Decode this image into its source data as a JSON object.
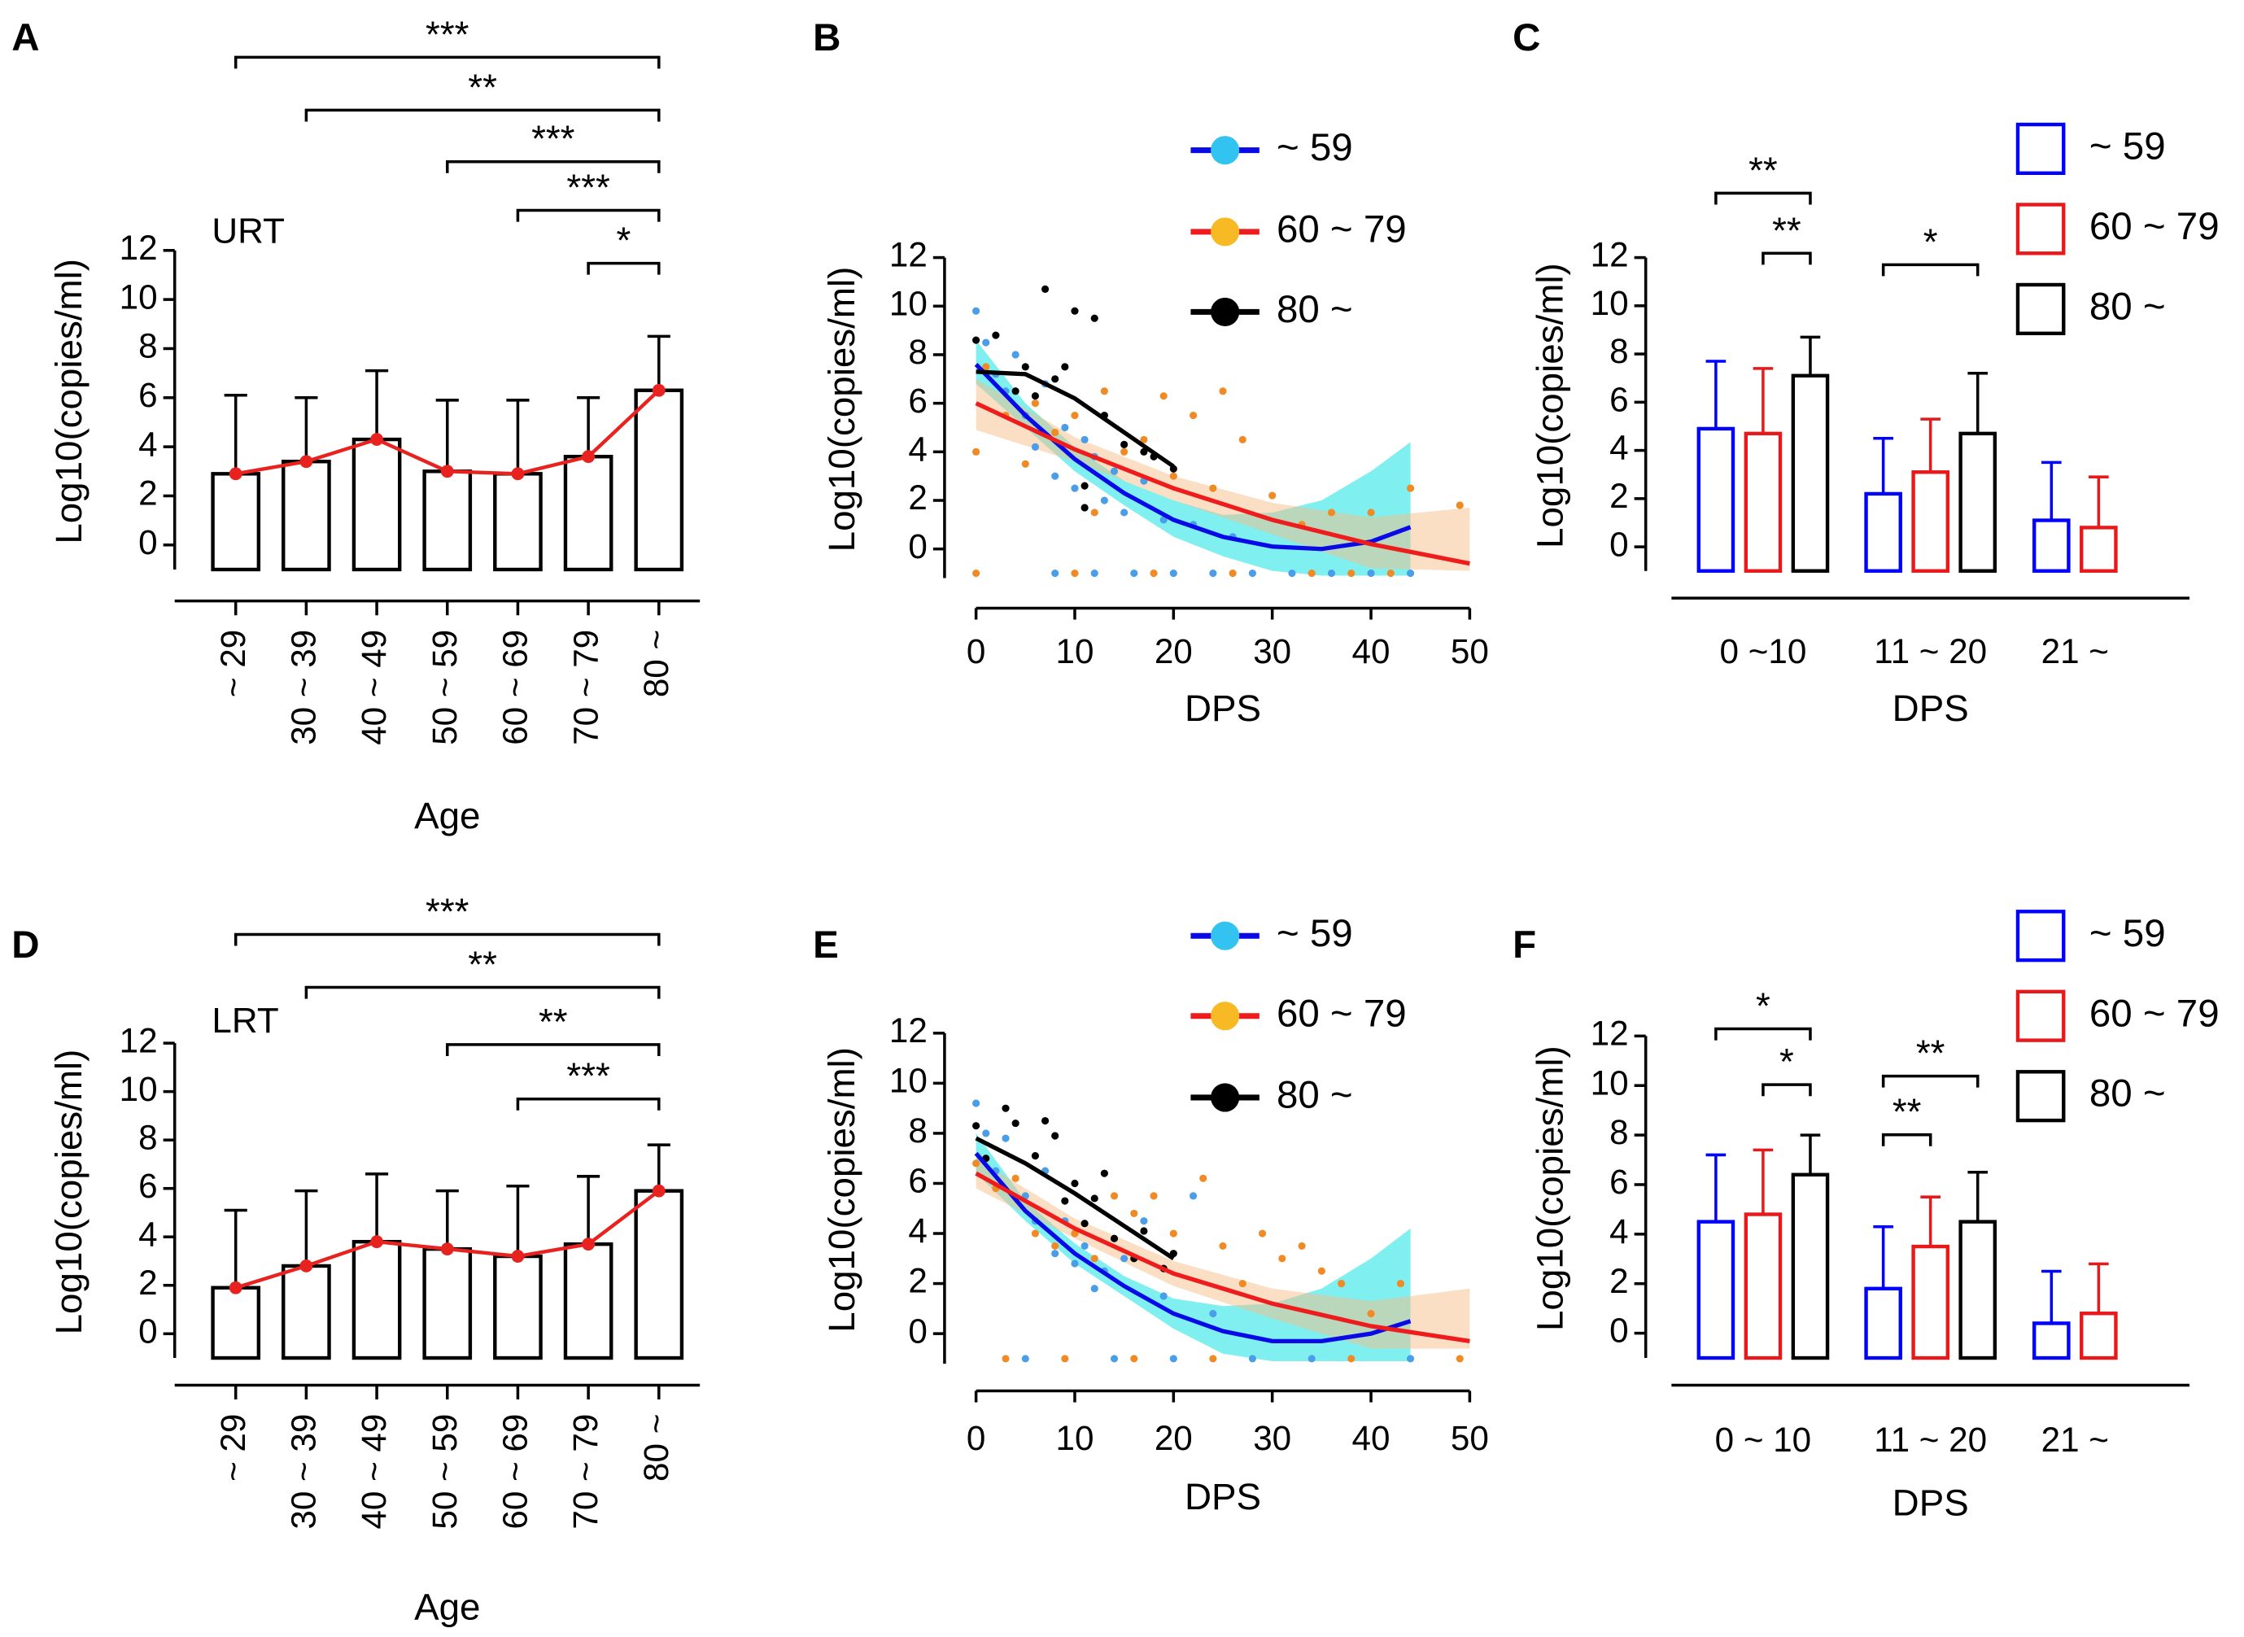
{
  "chart_data": [
    {
      "type": "bar",
      "panel": "A",
      "annotation": "URT",
      "x_label": "Age",
      "y_label": "Log10(copies/ml)",
      "categories": [
        "~ 29",
        "30 ~ 39",
        "40 ~ 49",
        "50 ~ 59",
        "60 ~ 69",
        "70 ~ 79",
        "80 ~"
      ],
      "values": [
        2.9,
        3.4,
        4.3,
        3.0,
        2.9,
        3.6,
        6.3
      ],
      "errors": [
        3.2,
        2.6,
        2.8,
        2.9,
        3.0,
        2.4,
        2.2
      ],
      "color": "#000000",
      "line_color": "#e8231f",
      "ylim": [
        -1,
        12
      ],
      "yticks": [
        0,
        2,
        4,
        6,
        8,
        10,
        12
      ],
      "brackets": [
        {
          "from": 0,
          "to": 6,
          "label": "***"
        },
        {
          "from": 1,
          "to": 6,
          "label": "**"
        },
        {
          "from": 3,
          "to": 6,
          "label": "***"
        },
        {
          "from": 4,
          "to": 6,
          "label": "***"
        },
        {
          "from": 5,
          "to": 6,
          "label": "*"
        }
      ]
    },
    {
      "type": "scatter",
      "panel": "B",
      "x_label": "DPS",
      "y_label": "Log10(copies/ml)",
      "xlim": [
        0,
        50
      ],
      "xticks": [
        0,
        10,
        20,
        30,
        40,
        50
      ],
      "ylim": [
        -1.2,
        12
      ],
      "yticks": [
        0,
        2,
        4,
        6,
        8,
        10,
        12
      ],
      "series": [
        {
          "name": "~ 59",
          "line_color": "#0a0ae6",
          "point_color": "#4a9ee8",
          "legend_dot_color": "#33c3f0",
          "band_color": "#00e0e0",
          "x": [
            0,
            1,
            2,
            3,
            4,
            5,
            6,
            7,
            8,
            9,
            10,
            11,
            12,
            13,
            14,
            15,
            17,
            19,
            22,
            26,
            8,
            12,
            16,
            20,
            24,
            28,
            32,
            36,
            40,
            44
          ],
          "y": [
            9.8,
            8.5,
            7.2,
            6.5,
            8.0,
            5.5,
            4.2,
            6.8,
            3.0,
            5.0,
            2.5,
            4.5,
            3.8,
            2.0,
            3.2,
            1.5,
            2.8,
            1.2,
            1.0,
            0.5,
            -1,
            -1,
            -1,
            -1,
            -1,
            -1,
            -1,
            -1,
            -1,
            -1
          ],
          "fit_x": [
            0,
            5,
            10,
            15,
            20,
            25,
            30,
            35,
            40,
            44
          ],
          "fit_y": [
            7.6,
            5.5,
            3.7,
            2.3,
            1.2,
            0.5,
            0.1,
            0.0,
            0.3,
            0.9
          ],
          "fit_upper": [
            8.6,
            6.0,
            4.2,
            2.8,
            2.0,
            1.4,
            1.5,
            2.0,
            3.2,
            4.4
          ],
          "fit_lower": [
            6.8,
            5.0,
            3.2,
            1.8,
            0.5,
            -0.3,
            -0.9,
            -1.1,
            -1.1,
            -1.1
          ]
        },
        {
          "name": "60 ~ 79",
          "line_color": "#ee1c1c",
          "point_color": "#f08a24",
          "legend_dot_color": "#f7b924",
          "band_color": "#f5c08a",
          "x": [
            0,
            1,
            3,
            5,
            6,
            8,
            10,
            12,
            13,
            15,
            17,
            19,
            20,
            22,
            24,
            25,
            27,
            30,
            33,
            36,
            40,
            44,
            49,
            0,
            10,
            18,
            26,
            34,
            38,
            42
          ],
          "y": [
            4.0,
            7.5,
            5.5,
            3.5,
            6.0,
            4.8,
            5.5,
            1.5,
            6.5,
            4.0,
            4.5,
            6.3,
            3.0,
            5.5,
            2.5,
            6.5,
            4.5,
            2.2,
            1.0,
            1.5,
            1.5,
            2.5,
            1.8,
            -1,
            -1,
            -1,
            -1,
            -1,
            -1,
            -1
          ],
          "fit_x": [
            0,
            10,
            20,
            30,
            40,
            50
          ],
          "fit_y": [
            6.0,
            4.1,
            2.5,
            1.2,
            0.2,
            -0.6
          ],
          "fit_upper": [
            7.0,
            4.6,
            3.0,
            1.9,
            1.3,
            1.7
          ],
          "fit_lower": [
            4.9,
            3.6,
            2.0,
            0.6,
            -0.8,
            -0.9
          ]
        },
        {
          "name": "80 ~",
          "line_color": "#000000",
          "point_color": "#000000",
          "legend_dot_color": "#000000",
          "x": [
            0,
            2,
            4,
            5,
            6,
            7,
            8,
            9,
            10,
            11,
            11,
            12,
            13,
            15,
            17,
            18,
            20
          ],
          "y": [
            8.6,
            8.8,
            6.5,
            7.5,
            6.3,
            10.7,
            7.0,
            7.5,
            9.8,
            2.6,
            1.7,
            9.5,
            5.5,
            4.3,
            4.0,
            3.8,
            3.3
          ],
          "fit_x": [
            0,
            5,
            10,
            15,
            20
          ],
          "fit_y": [
            7.3,
            7.2,
            6.2,
            4.8,
            3.4
          ]
        }
      ]
    },
    {
      "type": "grouped_bar",
      "panel": "C",
      "x_label": "DPS",
      "y_label": "Log10(copies/ml)",
      "categories": [
        "0 ~10",
        "11 ~ 20",
        "21 ~"
      ],
      "ylim": [
        -1,
        12
      ],
      "yticks": [
        0,
        2,
        4,
        6,
        8,
        10,
        12
      ],
      "series": [
        {
          "name": "~ 59",
          "color": "#0000ff",
          "values": [
            4.9,
            2.2,
            1.1
          ],
          "errors": [
            2.8,
            2.3,
            2.4
          ]
        },
        {
          "name": "60 ~ 79",
          "color": "#e8191b",
          "values": [
            4.7,
            3.1,
            0.8
          ],
          "errors": [
            2.7,
            2.2,
            2.1
          ]
        },
        {
          "name": "80 ~",
          "color": "#000000",
          "values": [
            7.1,
            4.7,
            null
          ],
          "errors": [
            1.6,
            2.5,
            null
          ]
        }
      ],
      "brackets": [
        {
          "group": 0,
          "from": 0,
          "to": 2,
          "label": "**"
        },
        {
          "group": 0,
          "from": 1,
          "to": 2,
          "label": "**"
        },
        {
          "group": 1,
          "from": 0,
          "to": 2,
          "label": "*"
        }
      ]
    },
    {
      "type": "bar",
      "panel": "D",
      "annotation": "LRT",
      "x_label": "Age",
      "y_label": "Log10(copies/ml)",
      "categories": [
        "~ 29",
        "30 ~ 39",
        "40 ~ 49",
        "50 ~ 59",
        "60 ~ 69",
        "70 ~ 79",
        "80 ~"
      ],
      "values": [
        1.9,
        2.8,
        3.8,
        3.5,
        3.2,
        3.7,
        5.9
      ],
      "errors": [
        3.2,
        3.1,
        2.8,
        2.4,
        2.9,
        2.8,
        1.9
      ],
      "color": "#000000",
      "line_color": "#e8231f",
      "ylim": [
        -1,
        12
      ],
      "yticks": [
        0,
        2,
        4,
        6,
        8,
        10,
        12
      ],
      "brackets": [
        {
          "from": 0,
          "to": 6,
          "label": "***"
        },
        {
          "from": 1,
          "to": 6,
          "label": "**"
        },
        {
          "from": 3,
          "to": 6,
          "label": "**"
        },
        {
          "from": 4,
          "to": 6,
          "label": "***"
        }
      ]
    },
    {
      "type": "scatter",
      "panel": "E",
      "x_label": "DPS",
      "y_label": "Log10(copies/ml)",
      "xlim": [
        0,
        50
      ],
      "xticks": [
        0,
        10,
        20,
        30,
        40,
        50
      ],
      "ylim": [
        -1.2,
        12
      ],
      "yticks": [
        0,
        2,
        4,
        6,
        8,
        10,
        12
      ],
      "series": [
        {
          "name": "~ 59",
          "line_color": "#0a0ae6",
          "point_color": "#4a9ee8",
          "legend_dot_color": "#33c3f0",
          "band_color": "#00e0e0",
          "x": [
            0,
            1,
            2,
            3,
            5,
            6,
            7,
            8,
            9,
            10,
            11,
            12,
            13,
            15,
            17,
            19,
            22,
            24,
            5,
            14,
            20,
            28,
            34,
            44
          ],
          "y": [
            9.2,
            8.0,
            6.5,
            7.8,
            5.5,
            4.5,
            6.5,
            3.2,
            4.5,
            2.8,
            3.5,
            1.8,
            2.5,
            3.0,
            4.5,
            1.5,
            5.5,
            0.8,
            -1,
            -1,
            -1,
            -1,
            -1,
            -1
          ],
          "fit_x": [
            0,
            5,
            10,
            15,
            20,
            25,
            30,
            35,
            40,
            44
          ],
          "fit_y": [
            7.2,
            4.9,
            3.2,
            1.9,
            0.8,
            0.1,
            -0.3,
            -0.3,
            0.0,
            0.5
          ],
          "fit_upper": [
            8.0,
            5.3,
            3.6,
            2.3,
            1.4,
            1.1,
            1.2,
            1.8,
            3.0,
            4.2
          ],
          "fit_lower": [
            6.4,
            4.5,
            2.8,
            1.5,
            0.2,
            -0.8,
            -1.1,
            -1.1,
            -1.1,
            -1.1
          ]
        },
        {
          "name": "60 ~ 79",
          "line_color": "#ee1c1c",
          "point_color": "#f08a24",
          "legend_dot_color": "#f7b924",
          "band_color": "#f5c08a",
          "x": [
            0,
            2,
            4,
            6,
            8,
            10,
            12,
            14,
            16,
            18,
            20,
            23,
            25,
            27,
            29,
            31,
            33,
            35,
            37,
            40,
            43,
            3,
            9,
            16,
            24,
            38,
            49
          ],
          "y": [
            6.8,
            5.8,
            6.2,
            4.0,
            3.5,
            4.0,
            3.0,
            5.5,
            4.8,
            5.5,
            4.0,
            6.2,
            3.5,
            2.0,
            4.0,
            3.0,
            3.5,
            2.5,
            2.0,
            0.8,
            2.0,
            -1,
            -1,
            -1,
            -1,
            -1,
            -1
          ],
          "fit_x": [
            0,
            10,
            20,
            30,
            40,
            50
          ],
          "fit_y": [
            6.4,
            4.2,
            2.4,
            1.2,
            0.3,
            -0.3
          ],
          "fit_upper": [
            7.0,
            4.6,
            2.9,
            1.8,
            1.3,
            1.8
          ],
          "fit_lower": [
            5.8,
            3.8,
            1.9,
            0.6,
            -0.6,
            -0.6
          ]
        },
        {
          "name": "80 ~",
          "line_color": "#000000",
          "point_color": "#000000",
          "legend_dot_color": "#000000",
          "x": [
            0,
            1,
            3,
            4,
            6,
            7,
            8,
            9,
            10,
            11,
            12,
            13,
            14,
            16,
            17,
            19,
            20
          ],
          "y": [
            8.3,
            7.0,
            9.0,
            8.4,
            7.1,
            8.5,
            7.9,
            5.3,
            6.0,
            4.4,
            5.4,
            6.4,
            3.8,
            3.0,
            4.1,
            2.6,
            3.2
          ],
          "fit_x": [
            0,
            5,
            10,
            15,
            20
          ],
          "fit_y": [
            7.8,
            6.8,
            5.6,
            4.3,
            3.0
          ]
        }
      ]
    },
    {
      "type": "grouped_bar",
      "panel": "F",
      "x_label": "DPS",
      "y_label": "Log10(copies/ml)",
      "categories": [
        "0 ~ 10",
        "11 ~ 20",
        "21 ~"
      ],
      "ylim": [
        -1,
        12
      ],
      "yticks": [
        0,
        2,
        4,
        6,
        8,
        10,
        12
      ],
      "series": [
        {
          "name": "~ 59",
          "color": "#0000ff",
          "values": [
            4.5,
            1.8,
            0.4
          ],
          "errors": [
            2.7,
            2.5,
            2.1
          ]
        },
        {
          "name": "60 ~ 79",
          "color": "#e8191b",
          "values": [
            4.8,
            3.5,
            0.8
          ],
          "errors": [
            2.6,
            2.0,
            2.0
          ]
        },
        {
          "name": "80 ~",
          "color": "#000000",
          "values": [
            6.4,
            4.5,
            null
          ],
          "errors": [
            1.6,
            2.0,
            null
          ]
        }
      ],
      "brackets": [
        {
          "group": 0,
          "from": 0,
          "to": 2,
          "label": "*"
        },
        {
          "group": 0,
          "from": 1,
          "to": 2,
          "label": "*"
        },
        {
          "group": 1,
          "from": 0,
          "to": 2,
          "label": "**"
        },
        {
          "group": 1,
          "from": 0,
          "to": 1,
          "label": "**"
        }
      ]
    }
  ]
}
